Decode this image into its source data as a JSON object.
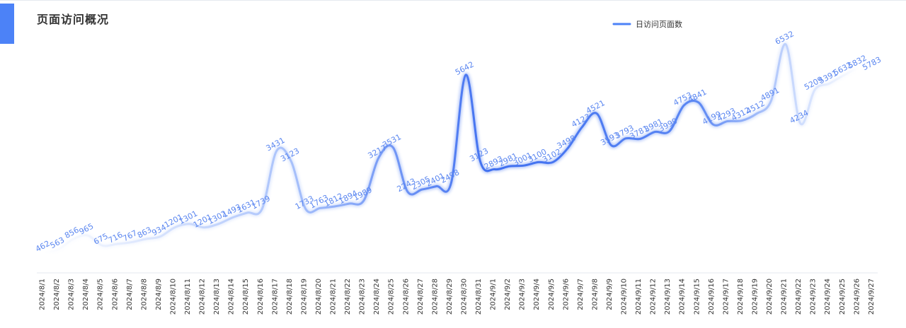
{
  "header": {
    "title": "页面访问概况"
  },
  "colors": {
    "accent": "#4c82f7",
    "line_end": "#3a6df0",
    "line_faint": "#d8e3fd"
  },
  "chart_data": {
    "type": "line",
    "title": "",
    "xlabel": "",
    "ylabel": "",
    "legend_placement": "top-right",
    "grid": false,
    "ylim": [
      0,
      7000
    ],
    "categories": [
      "2024/8/1",
      "2024/8/2",
      "2024/8/3",
      "2024/8/4",
      "2024/8/5",
      "2024/8/6",
      "2024/8/7",
      "2024/8/8",
      "2024/8/9",
      "2024/8/10",
      "2024/8/11",
      "2024/8/12",
      "2024/8/13",
      "2024/8/14",
      "2024/8/15",
      "2024/8/16",
      "2024/8/17",
      "2024/8/18",
      "2024/8/19",
      "2024/8/20",
      "2024/8/21",
      "2024/8/22",
      "2024/8/23",
      "2024/8/24",
      "2024/8/25",
      "2024/8/26",
      "2024/8/27",
      "2024/8/28",
      "2024/8/29",
      "2024/8/30",
      "2024/8/31",
      "2024/9/1",
      "2024/9/2",
      "2024/9/3",
      "2024/9/4",
      "2024/9/5",
      "2024/9/6",
      "2024/9/7",
      "2024/9/8",
      "2024/9/9",
      "2024/9/10",
      "2024/9/11",
      "2024/9/12",
      "2024/9/13",
      "2024/9/14",
      "2024/9/15",
      "2024/9/16",
      "2024/9/17",
      "2024/9/18",
      "2024/9/19",
      "2024/9/20",
      "2024/9/21",
      "2024/9/22",
      "2024/9/23",
      "2024/9/24",
      "2024/9/25",
      "2024/9/26",
      "2024/9/27"
    ],
    "series": [
      {
        "name": "日访问页面数",
        "values": [
          462,
          563,
          856,
          965,
          675,
          716,
          767,
          863,
          934,
          1201,
          1301,
          1201,
          1302,
          1493,
          1631,
          1739,
          3431,
          3123,
          1733,
          1763,
          1812,
          1894,
          1989,
          3217,
          3531,
          2243,
          2305,
          2401,
          2498,
          5642,
          3123,
          2893,
          2981,
          3001,
          3100,
          3102,
          3498,
          4123,
          4521,
          3593,
          3793,
          3781,
          3981,
          3999,
          4753,
          4841,
          4199,
          4293,
          4312,
          4512,
          4891,
          6532,
          4234,
          5209,
          5391,
          5632,
          5832,
          5783
        ]
      }
    ]
  }
}
